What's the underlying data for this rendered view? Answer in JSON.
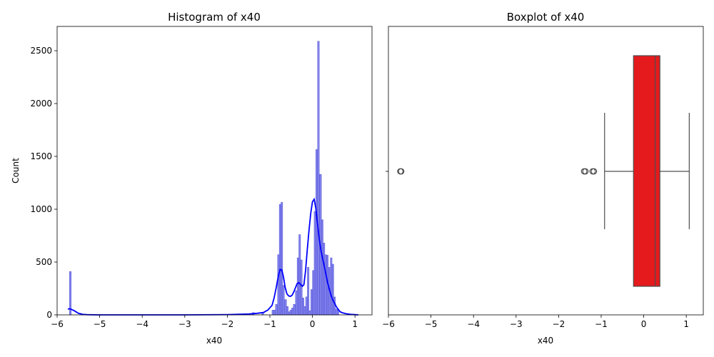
{
  "chart_data": [
    {
      "type": "histogram",
      "title": "Histogram of x40",
      "xlabel": "x40",
      "ylabel": "Count",
      "xlim": [
        -6.0,
        1.4
      ],
      "ylim": [
        0,
        2730
      ],
      "xticks": [
        -6,
        -5,
        -4,
        -3,
        -2,
        -1,
        0,
        1
      ],
      "yticks": [
        0,
        500,
        1000,
        1500,
        2000,
        2500
      ],
      "colors": {
        "bars": "#6a6ae8",
        "bar_edge": "#4a4ad6",
        "kde": "#0000ff"
      },
      "bars": [
        {
          "x": -5.71,
          "count": 410
        },
        {
          "x": -1.41,
          "count": 22
        },
        {
          "x": -1.19,
          "count": 20
        },
        {
          "x": -0.95,
          "count": 45
        },
        {
          "x": -0.91,
          "count": 45
        },
        {
          "x": -0.87,
          "count": 100
        },
        {
          "x": -0.82,
          "count": 570
        },
        {
          "x": -0.78,
          "count": 1045
        },
        {
          "x": -0.74,
          "count": 1065
        },
        {
          "x": -0.7,
          "count": 280
        },
        {
          "x": -0.65,
          "count": 145
        },
        {
          "x": -0.61,
          "count": 80
        },
        {
          "x": -0.57,
          "count": 30
        },
        {
          "x": -0.53,
          "count": 45
        },
        {
          "x": -0.49,
          "count": 65
        },
        {
          "x": -0.45,
          "count": 100
        },
        {
          "x": -0.4,
          "count": 230
        },
        {
          "x": -0.36,
          "count": 540
        },
        {
          "x": -0.32,
          "count": 760
        },
        {
          "x": -0.28,
          "count": 520
        },
        {
          "x": -0.24,
          "count": 160
        },
        {
          "x": -0.2,
          "count": 80
        },
        {
          "x": -0.16,
          "count": 170
        },
        {
          "x": -0.12,
          "count": 450
        },
        {
          "x": -0.08,
          "count": 40
        },
        {
          "x": -0.04,
          "count": 240
        },
        {
          "x": 0.0,
          "count": 420
        },
        {
          "x": 0.04,
          "count": 980
        },
        {
          "x": 0.08,
          "count": 1565
        },
        {
          "x": 0.12,
          "count": 2590
        },
        {
          "x": 0.17,
          "count": 1330
        },
        {
          "x": 0.21,
          "count": 900
        },
        {
          "x": 0.25,
          "count": 680
        },
        {
          "x": 0.29,
          "count": 570
        },
        {
          "x": 0.33,
          "count": 565
        },
        {
          "x": 0.37,
          "count": 450
        },
        {
          "x": 0.42,
          "count": 540
        },
        {
          "x": 0.46,
          "count": 480
        },
        {
          "x": 0.5,
          "count": 170
        },
        {
          "x": 0.54,
          "count": 55
        },
        {
          "x": 0.58,
          "count": 55
        }
      ],
      "kde": {
        "x": [
          -5.75,
          -5.7,
          -5.6,
          -5.5,
          -5.4,
          -5.3,
          -5.0,
          -4.0,
          -3.0,
          -2.0,
          -1.5,
          -1.3,
          -1.15,
          -1.05,
          -0.95,
          -0.9,
          -0.85,
          -0.8,
          -0.76,
          -0.72,
          -0.68,
          -0.64,
          -0.6,
          -0.56,
          -0.52,
          -0.48,
          -0.44,
          -0.4,
          -0.36,
          -0.32,
          -0.28,
          -0.24,
          -0.2,
          -0.16,
          -0.12,
          -0.08,
          -0.04,
          0.0,
          0.04,
          0.08,
          0.12,
          0.16,
          0.2,
          0.24,
          0.28,
          0.32,
          0.36,
          0.4,
          0.44,
          0.48,
          0.52,
          0.56,
          0.6,
          0.65,
          0.7,
          0.8,
          0.9,
          1.0,
          1.08
        ],
        "y": [
          55,
          58,
          40,
          15,
          5,
          2,
          0,
          0,
          0,
          3,
          8,
          15,
          22,
          45,
          90,
          160,
          260,
          370,
          430,
          425,
          360,
          260,
          200,
          180,
          175,
          185,
          215,
          255,
          295,
          305,
          290,
          270,
          285,
          420,
          620,
          800,
          960,
          1070,
          1095,
          1010,
          860,
          720,
          610,
          530,
          460,
          380,
          300,
          240,
          180,
          140,
          110,
          80,
          55,
          30,
          20,
          10,
          5,
          2,
          0
        ]
      }
    },
    {
      "type": "boxplot",
      "title": "Boxplot of x40",
      "xlabel": "x40",
      "xlim": [
        -6.0,
        1.4
      ],
      "xticks": [
        -6,
        -5,
        -4,
        -3,
        -2,
        -1,
        0,
        1
      ],
      "colors": {
        "box": "#e41a1c",
        "lines": "#4d4d4d"
      },
      "q1": -0.24,
      "median": 0.27,
      "q3": 0.38,
      "whisker_low": -0.92,
      "whisker_high": 1.07,
      "outliers": [
        -5.72,
        -5.7,
        -1.4,
        -1.37,
        -1.2,
        -1.17
      ]
    }
  ]
}
